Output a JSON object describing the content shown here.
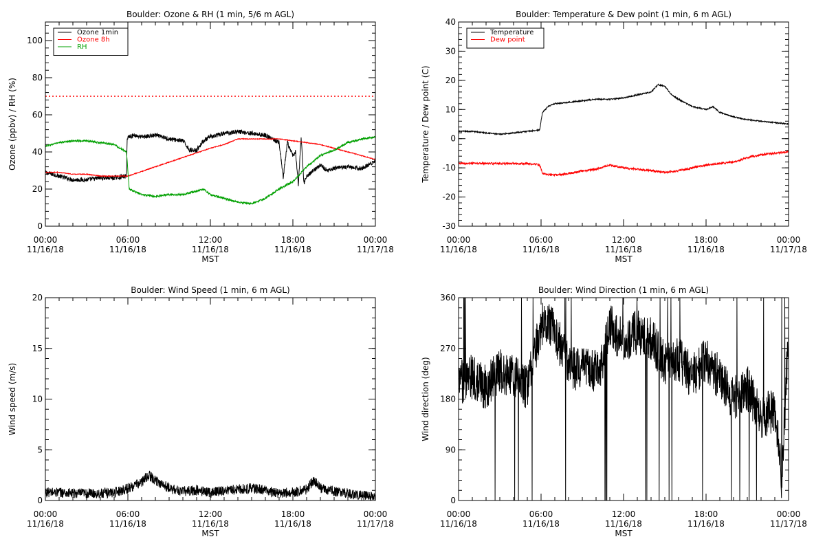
{
  "chart_data": [
    {
      "type": "line",
      "title": "Boulder: Ozone & RH (1 min, 5/6 m AGL)",
      "xlabel": "MST",
      "ylabel": "Ozone (ppbv) / RH (%)",
      "xlim": [
        0,
        24
      ],
      "ylim": [
        0,
        110
      ],
      "yticks": [
        0,
        20,
        40,
        60,
        80,
        100
      ],
      "xtick_times": [
        "00:00",
        "06:00",
        "12:00",
        "18:00",
        "00:00"
      ],
      "xtick_dates": [
        "11/16/18",
        "11/16/18",
        "11/16/18",
        "11/16/18",
        "11/17/18"
      ],
      "legend_position": "top-left",
      "reference_line": {
        "y": 70,
        "style": "dotted",
        "color": "#ff0000"
      },
      "series": [
        {
          "name": "Ozone 1min",
          "color": "#000000",
          "noise": 1.2,
          "x": [
            0,
            1,
            2,
            3,
            4,
            5,
            5.9,
            5.95,
            6.5,
            7,
            8,
            9,
            10,
            10.5,
            11,
            11.5,
            12,
            13,
            14,
            15,
            16,
            16.5,
            17,
            17.3,
            17.6,
            18,
            18.2,
            18.4,
            18.6,
            18.8,
            19,
            19.5,
            20,
            20.5,
            21,
            22,
            23,
            23.5,
            24
          ],
          "values": [
            29,
            27,
            25,
            25,
            26,
            26,
            27,
            48,
            49,
            48,
            49,
            47,
            46,
            41,
            41,
            46,
            48,
            50,
            51,
            50,
            49,
            47,
            45,
            26,
            45,
            38,
            40,
            22,
            48,
            23,
            27,
            30,
            33,
            30,
            31,
            32,
            31,
            33,
            35
          ]
        },
        {
          "name": "Ozone 8h",
          "color": "#ff0000",
          "noise": 0.2,
          "x": [
            0,
            1,
            2,
            3,
            4,
            5,
            6,
            8,
            10,
            12,
            13,
            14,
            15,
            16,
            17,
            18,
            19,
            20,
            21,
            22,
            23,
            24
          ],
          "values": [
            29,
            29,
            28,
            28,
            27,
            27,
            27,
            32,
            37,
            42,
            44,
            47,
            47,
            47,
            47,
            46,
            45,
            44,
            42,
            40,
            38,
            36
          ]
        },
        {
          "name": "RH",
          "color": "#00a000",
          "noise": 0.5,
          "x": [
            0,
            1,
            2,
            3,
            4,
            5,
            5.9,
            6.1,
            7,
            8,
            9,
            10,
            11,
            11.5,
            12,
            13,
            14,
            15,
            16,
            17,
            17.5,
            18,
            19,
            20,
            21,
            22,
            23,
            24
          ],
          "values": [
            43,
            45,
            46,
            46,
            45,
            44,
            40,
            20,
            17,
            16,
            17,
            17,
            19,
            20,
            17,
            15,
            13,
            12,
            15,
            20,
            22,
            24,
            32,
            38,
            41,
            45,
            47,
            48
          ]
        }
      ]
    },
    {
      "type": "line",
      "title": "Boulder: Temperature & Dew point (1 min, 6 m AGL)",
      "xlabel": "MST",
      "ylabel": "Temperature / Dew point (C)",
      "xlim": [
        0,
        24
      ],
      "ylim": [
        -30,
        40
      ],
      "yticks": [
        -30,
        -20,
        -10,
        0,
        10,
        20,
        30,
        40
      ],
      "xtick_times": [
        "00:00",
        "06:00",
        "12:00",
        "18:00",
        "00:00"
      ],
      "xtick_dates": [
        "11/16/18",
        "11/16/18",
        "11/16/18",
        "11/16/18",
        "11/17/18"
      ],
      "legend_position": "top-left",
      "series": [
        {
          "name": "Temperature",
          "color": "#000000",
          "noise": 0.2,
          "x": [
            0,
            1,
            2,
            3,
            4,
            5,
            5.9,
            6.1,
            6.5,
            7,
            8,
            9,
            10,
            11,
            12,
            13,
            14,
            14.5,
            15,
            15.5,
            16,
            17,
            18,
            18.5,
            19,
            20,
            21,
            22,
            23,
            24
          ],
          "values": [
            2.5,
            2.5,
            2,
            1.5,
            2,
            2.5,
            3,
            9,
            11,
            12,
            12.5,
            13,
            13.5,
            13.5,
            14,
            15,
            16,
            18.5,
            18,
            15,
            13.5,
            11,
            10,
            11,
            9,
            7.5,
            6.5,
            6,
            5.5,
            5
          ]
        },
        {
          "name": "Dew point",
          "color": "#ff0000",
          "noise": 0.35,
          "x": [
            0,
            1,
            2,
            3,
            4,
            5,
            5.9,
            6.1,
            7,
            8,
            9,
            10,
            11,
            12,
            13,
            14,
            15,
            16,
            17,
            18,
            19,
            20,
            21,
            22,
            23,
            24
          ],
          "values": [
            -8.5,
            -8.5,
            -8.5,
            -8.5,
            -8.5,
            -8.5,
            -9,
            -12,
            -12.5,
            -12,
            -11,
            -10.5,
            -9,
            -10,
            -10.5,
            -11,
            -11.5,
            -11,
            -10,
            -9,
            -8.5,
            -8,
            -6.5,
            -5.5,
            -5,
            -4.5
          ]
        }
      ]
    },
    {
      "type": "line",
      "title": "Boulder: Wind Speed (1 min, 6 m AGL)",
      "xlabel": "MST",
      "ylabel": "Wind speed (m/s)",
      "xlim": [
        0,
        24
      ],
      "ylim": [
        0,
        20
      ],
      "yticks": [
        0,
        5,
        10,
        15,
        20
      ],
      "xtick_times": [
        "00:00",
        "06:00",
        "12:00",
        "18:00",
        "00:00"
      ],
      "xtick_dates": [
        "11/16/18",
        "11/16/18",
        "11/16/18",
        "11/16/18",
        "11/17/18"
      ],
      "series": [
        {
          "color": "#000000",
          "noise": 0.5,
          "x": [
            0,
            1,
            2,
            3,
            4,
            5,
            6,
            7,
            7.5,
            8,
            9,
            10,
            11,
            12,
            13,
            14,
            15,
            16,
            17,
            18,
            19,
            19.5,
            20,
            21,
            22,
            23,
            24
          ],
          "values": [
            0.8,
            0.8,
            0.7,
            0.7,
            0.7,
            0.8,
            1.2,
            1.8,
            2.5,
            2,
            1.2,
            0.9,
            1,
            0.8,
            1,
            1.1,
            1.2,
            1,
            0.7,
            0.8,
            1.1,
            2,
            1.2,
            0.9,
            0.7,
            0.5,
            0.3
          ]
        }
      ]
    },
    {
      "type": "line",
      "title": "Boulder: Wind Direction (1 min, 6 m AGL)",
      "xlabel": "MST",
      "ylabel": "Wind direction (deg)",
      "xlim": [
        0,
        24
      ],
      "ylim": [
        0,
        360
      ],
      "yticks": [
        0,
        90,
        180,
        270,
        360
      ],
      "xtick_times": [
        "00:00",
        "06:00",
        "12:00",
        "18:00",
        "00:00"
      ],
      "xtick_dates": [
        "11/16/18",
        "11/16/18",
        "11/16/18",
        "11/16/18",
        "11/17/18"
      ],
      "series": [
        {
          "color": "#000000",
          "noise": 40,
          "spike_prob": 0.03,
          "spike_to": [
            0,
            360
          ],
          "x": [
            0,
            1,
            2,
            3,
            4,
            5,
            6,
            6.5,
            7,
            8,
            9,
            10,
            10.5,
            11,
            12,
            13,
            14,
            15,
            16,
            17,
            18,
            18.5,
            19,
            20,
            21,
            22,
            23,
            23.5,
            24
          ],
          "values": [
            210,
            220,
            200,
            230,
            220,
            200,
            310,
            320,
            300,
            240,
            230,
            230,
            250,
            310,
            280,
            300,
            290,
            240,
            250,
            220,
            250,
            230,
            220,
            180,
            200,
            150,
            160,
            40,
            300
          ]
        }
      ]
    }
  ]
}
